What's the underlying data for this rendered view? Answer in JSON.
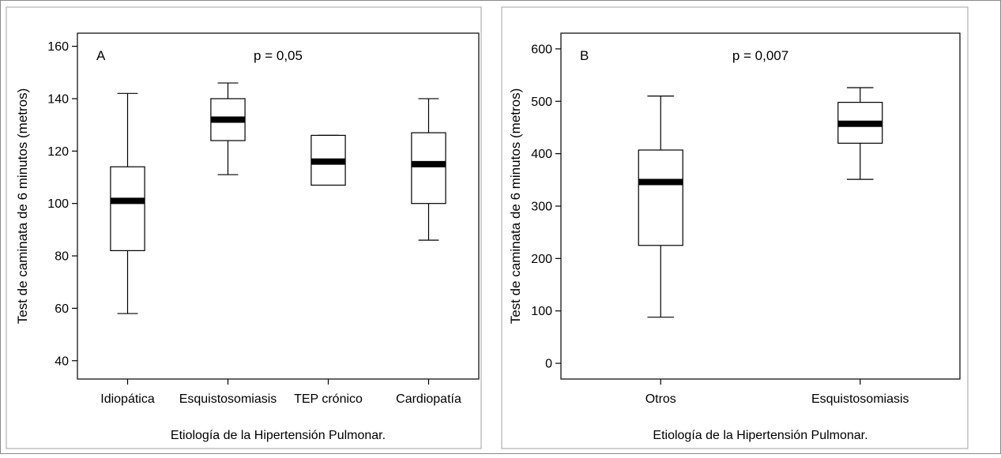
{
  "chart_data": [
    {
      "type": "box",
      "panel_label": "A",
      "annotation": "p = 0,05",
      "xlabel": "Etiología de la Hipertensión Pulmonar.",
      "ylabel": "Test de caminata de 6 minutos (metros)",
      "ylim": [
        33,
        165
      ],
      "yticks": [
        40,
        60,
        80,
        100,
        120,
        140,
        160
      ],
      "categories": [
        "Idiopática",
        "Esquistosomiasis",
        "TEP crónico",
        "Cardiopatía"
      ],
      "boxes": [
        {
          "min": 58,
          "q1": 82,
          "median": 101,
          "q3": 114,
          "max": 142
        },
        {
          "min": 111,
          "q1": 124,
          "median": 132,
          "q3": 140,
          "max": 146
        },
        {
          "min": 107,
          "q1": 107,
          "median": 116,
          "q3": 126,
          "max": 126
        },
        {
          "min": 86,
          "q1": 100,
          "median": 115,
          "q3": 127,
          "max": 140
        }
      ],
      "grid": false,
      "colors": {
        "box": "#ffffff",
        "stroke": "#000000",
        "median": "#000000"
      }
    },
    {
      "type": "box",
      "panel_label": "B",
      "annotation": "p = 0,007",
      "xlabel": "Etiología de la Hipertensión Pulmonar.",
      "ylabel": "Test de caminata de 6 minutos (metros)",
      "ylim": [
        -30,
        630
      ],
      "yticks": [
        0,
        100,
        200,
        300,
        400,
        500,
        600
      ],
      "categories": [
        "Otros",
        "Esquistosomiasis"
      ],
      "boxes": [
        {
          "min": 88,
          "q1": 225,
          "median": 346,
          "q3": 407,
          "max": 510
        },
        {
          "min": 351,
          "q1": 420,
          "median": 457,
          "q3": 498,
          "max": 526
        }
      ],
      "grid": false,
      "colors": {
        "box": "#ffffff",
        "stroke": "#000000",
        "median": "#000000"
      }
    }
  ]
}
